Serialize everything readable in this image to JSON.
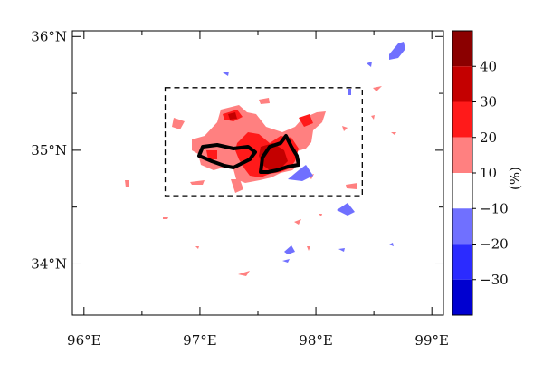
{
  "map": {
    "lat_labels": [
      "36°N",
      "35°N",
      "34°N"
    ],
    "lon_labels": [
      "96°E",
      "97°E",
      "98°E",
      "99°E"
    ],
    "lon_range": [
      95.9,
      99.1
    ],
    "lat_range": [
      33.55,
      36.05
    ],
    "dashed_box": {
      "lon": [
        96.7,
        98.4
      ],
      "lat": [
        34.6,
        35.55
      ]
    }
  },
  "colorbar": {
    "unit": "(%)",
    "tick_labels": [
      "40",
      "30",
      "20",
      "10",
      "−10",
      "−20",
      "−30"
    ],
    "bins": [
      {
        "range": "40 to 50",
        "color": "#8b0000"
      },
      {
        "range": "30 to 40",
        "color": "#c40000"
      },
      {
        "range": "20 to 30",
        "color": "#ff1a1a"
      },
      {
        "range": "10 to 20",
        "color": "#ff8080"
      },
      {
        "range": "−10 to 10",
        "color": "#ffffff"
      },
      {
        "range": "−20 to −10",
        "color": "#7070ff"
      },
      {
        "range": "−30 to −20",
        "color": "#2b2bff"
      },
      {
        "range": "−40 to −30",
        "color": "#0000d0"
      }
    ]
  },
  "colors": {
    "positive_light": "#ff8080",
    "positive_mid": "#ff1a1a",
    "positive_dark": "#c40000",
    "negative_light": "#7070ff",
    "negative_mid": "#2b2bff"
  }
}
